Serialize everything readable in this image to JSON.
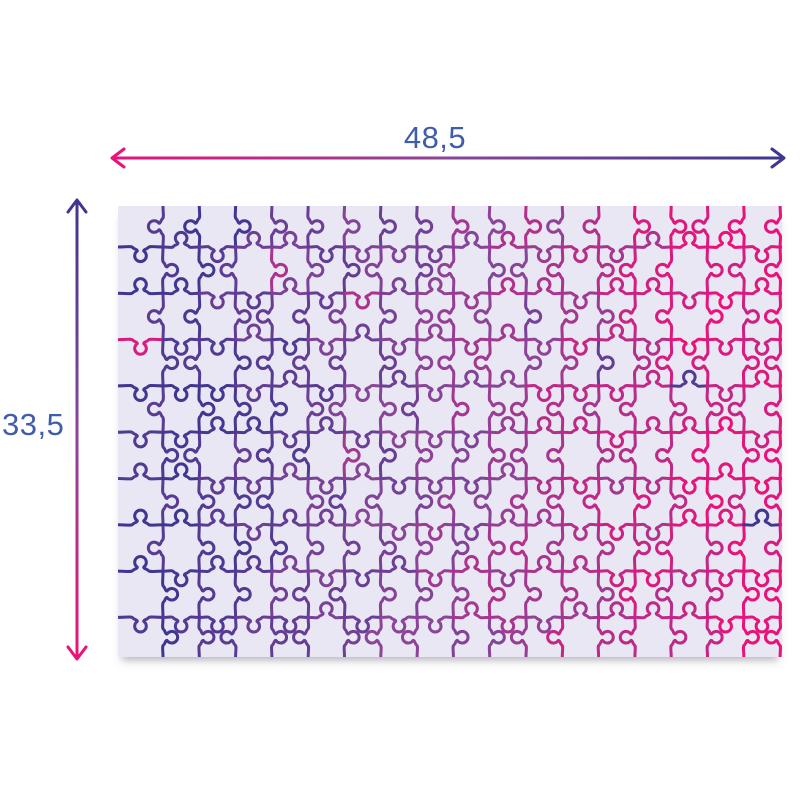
{
  "dimension_labels": {
    "width": "48,5",
    "height": "33,5"
  },
  "palette": {
    "indigo": "#3e3690",
    "purple": "#8a4598",
    "pink": "#ea1278",
    "label_blue": "#3f5da9",
    "board_fill": "#e9e7f4"
  },
  "board": {
    "columns": 18,
    "rows": 10
  },
  "icons": {
    "width_arrow": "double-headed-horizontal-arrow",
    "height_arrow": "double-headed-vertical-arrow"
  }
}
